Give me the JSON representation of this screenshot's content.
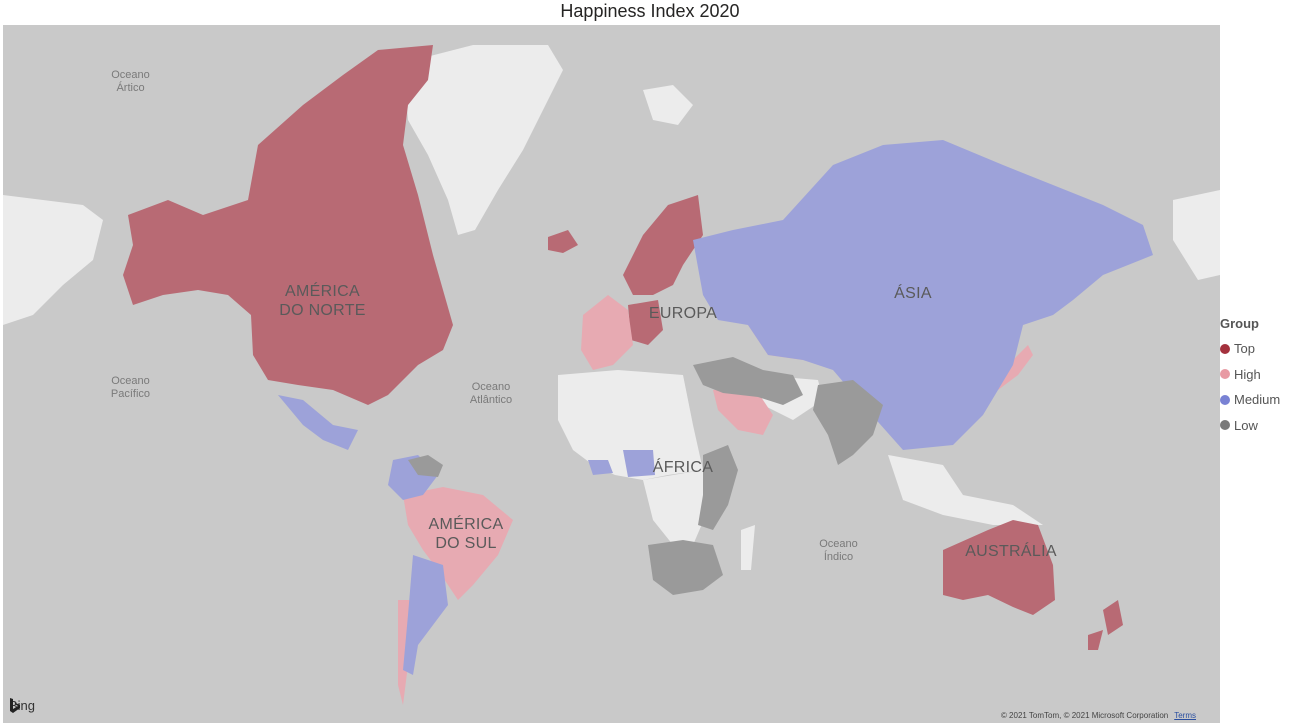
{
  "title": "Happiness Index 2020",
  "legend": {
    "title": "Group",
    "items": [
      {
        "label": "Top",
        "color": "#a4313d"
      },
      {
        "label": "High",
        "color": "#e89aa3"
      },
      {
        "label": "Medium",
        "color": "#7982d4"
      },
      {
        "label": "Low",
        "color": "#7a7a7a"
      }
    ]
  },
  "map": {
    "ocean_color": "#c9c9c9",
    "land_color": "#ececec",
    "fill_colors": {
      "top": "#b86a74",
      "high": "#e7aab2",
      "medium": "#9da2d9",
      "low": "#9a9a9a"
    },
    "oceans": [
      {
        "line1": "Oceano",
        "line2": "Ártico"
      },
      {
        "line1": "Oceano",
        "line2": "Pacífico"
      },
      {
        "line1": "Oceano",
        "line2": "Atlântico"
      },
      {
        "line1": "Oceano",
        "line2": "Índico"
      }
    ],
    "regions": [
      {
        "line1": "AMÉRICA",
        "line2": "DO NORTE"
      },
      {
        "line1": "EUROPA",
        "line2": ""
      },
      {
        "line1": "ÁSIA",
        "line2": ""
      },
      {
        "line1": "ÁFRICA",
        "line2": ""
      },
      {
        "line1": "AMÉRICA",
        "line2": "DO SUL"
      },
      {
        "line1": "AUSTRÁLIA",
        "line2": ""
      }
    ]
  },
  "attribution": {
    "bing": "Bing",
    "copyright": "© 2021 TomTom, © 2021 Microsoft Corporation",
    "terms": "Terms"
  }
}
